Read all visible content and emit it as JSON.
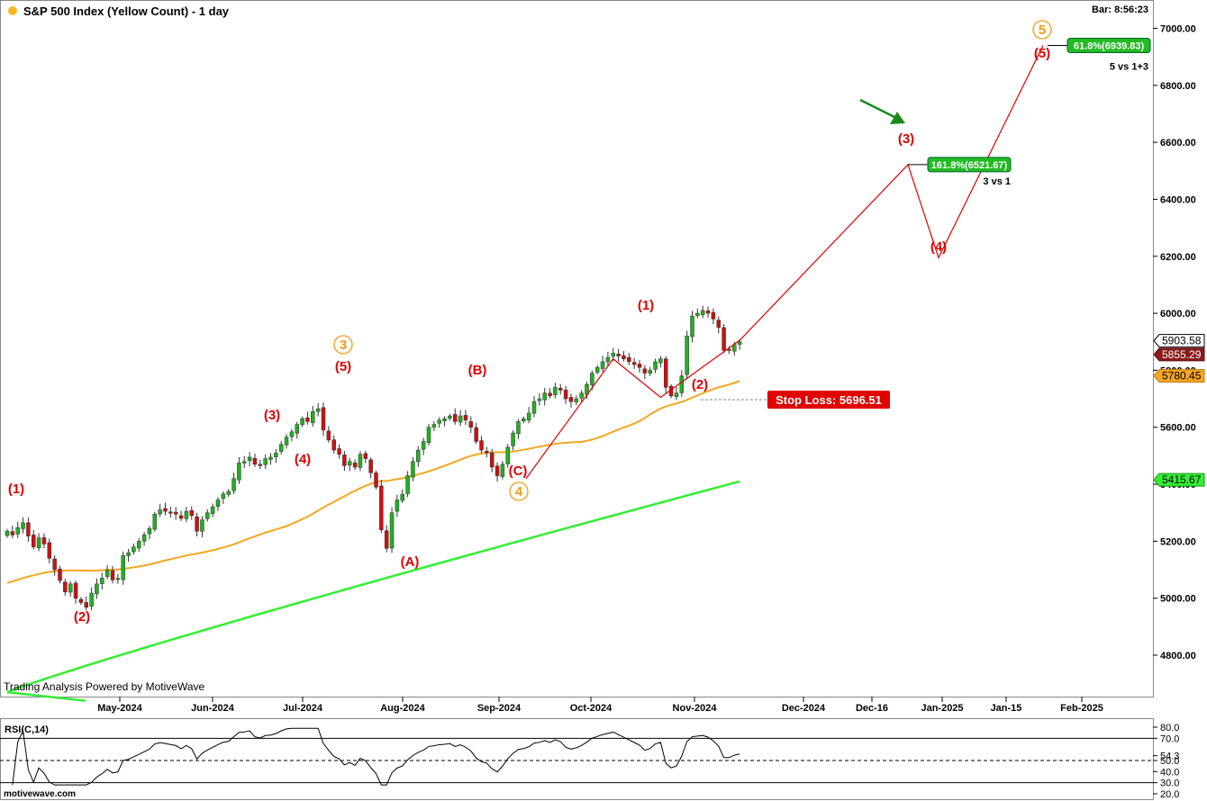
{
  "header": {
    "title": "S&P 500 Index (Yellow Count) - 1 day",
    "bar_time": "Bar: 8:56:23",
    "title_dot_color": "#f5b820"
  },
  "footer": {
    "powered_by": "Trading Analysis Powered by MotiveWave",
    "watermark": "motivewave.com"
  },
  "colors": {
    "up_candle": "#22b022",
    "down_candle": "#cc1111",
    "ma_fast": "#f5a623",
    "ma_slow": "#33ee33",
    "projection": "#e00000",
    "wave_red": "#e00000",
    "wave_orange": "#f39c12",
    "target_box": "#22bb22",
    "stop_box": "#e00000",
    "arrow": "#1a8a1a"
  },
  "chart_data": {
    "type": "candlestick",
    "ylim": [
      4650,
      7080
    ],
    "y_ticks": [
      {
        "value": 4800,
        "label": "4800.00"
      },
      {
        "value": 5000,
        "label": "5000.00"
      },
      {
        "value": 5200,
        "label": "5200.00"
      },
      {
        "value": 5400,
        "label": "5400.00"
      },
      {
        "value": 5600,
        "label": "5600.00"
      },
      {
        "value": 5800,
        "label": "5800.00"
      },
      {
        "value": 6000,
        "label": "6000.00"
      },
      {
        "value": 6200,
        "label": "6200.00"
      },
      {
        "value": 6400,
        "label": "6400.00"
      },
      {
        "value": 6600,
        "label": "6600.00"
      },
      {
        "value": 6800,
        "label": "6800.00"
      },
      {
        "value": 7000,
        "label": "7000.00"
      }
    ],
    "x_ticks": [
      "May-2024",
      "Jun-2024",
      "Jul-2024",
      "Aug-2024",
      "Sep-2024",
      "Oct-2024",
      "Nov-2024",
      "Dec-2024",
      "Dec-16",
      "Jan-2025",
      "Jan-15",
      "Feb-2025"
    ],
    "price_tags": [
      {
        "label": "5903.58",
        "value": 5903.58,
        "style": "outline"
      },
      {
        "label": "5855.29",
        "value": 5855.29,
        "style": "dark-red"
      },
      {
        "label": "5780.45",
        "value": 5780.45,
        "style": "orange"
      },
      {
        "label": "5415.67",
        "value": 5415.67,
        "style": "green"
      }
    ],
    "closes": [
      5235,
      5222,
      5248,
      5265,
      5218,
      5180,
      5212,
      5190,
      5140,
      5100,
      5062,
      5022,
      5050,
      5000,
      4985,
      4968,
      5018,
      5050,
      5071,
      5099,
      5064,
      5070,
      5150,
      5160,
      5180,
      5200,
      5222,
      5245,
      5295,
      5310,
      5305,
      5300,
      5295,
      5280,
      5305,
      5290,
      5235,
      5275,
      5300,
      5321,
      5345,
      5366,
      5375,
      5420,
      5475,
      5480,
      5495,
      5470,
      5465,
      5490,
      5495,
      5510,
      5540,
      5565,
      5584,
      5610,
      5630,
      5620,
      5655,
      5665,
      5590,
      5555,
      5520,
      5505,
      5465,
      5480,
      5460,
      5505,
      5490,
      5440,
      5390,
      5240,
      5175,
      5300,
      5345,
      5365,
      5430,
      5480,
      5520,
      5550,
      5600,
      5610,
      5625,
      5630,
      5640,
      5620,
      5640,
      5625,
      5600,
      5550,
      5520,
      5510,
      5460,
      5430,
      5470,
      5530,
      5580,
      5620,
      5630,
      5650,
      5690,
      5700,
      5720,
      5710,
      5740,
      5730,
      5700,
      5690,
      5700,
      5720,
      5750,
      5790,
      5810,
      5830,
      5845,
      5860,
      5850,
      5840,
      5830,
      5820,
      5810,
      5790,
      5800,
      5830,
      5840,
      5740,
      5710,
      5720,
      5780,
      5920,
      5990,
      6000,
      6010,
      6000,
      5980,
      5950,
      5870,
      5870,
      5890,
      5900
    ],
    "ma_fast_label": "orange moving average",
    "ma_slow_label": "green moving average",
    "projection_path": [
      {
        "bar": 115,
        "value": 5840
      },
      {
        "bar": 124,
        "value": 5705
      },
      {
        "bar": "end",
        "value": 5905
      },
      {
        "proj_x": 0,
        "value": 6521.67
      },
      {
        "proj_x": 1,
        "value": 6195
      },
      {
        "proj_x": 2,
        "value": 6939.83
      }
    ],
    "targets": [
      {
        "label": "161.8%(6521.67)",
        "value": 6521.67,
        "note": "3 vs 1"
      },
      {
        "label": "61.8%(6939.83)",
        "value": 6939.83,
        "note": "5 vs 1+3"
      }
    ],
    "stop_loss": {
      "label": "Stop Loss: 5696.51",
      "value": 5696.51
    },
    "wave_labels_red": [
      "(1)",
      "(2)",
      "(3)",
      "(4)",
      "(5)",
      "(A)",
      "(B)",
      "(C)",
      "(1)",
      "(2)",
      "(3)",
      "(4)",
      "(5)"
    ],
    "wave_labels_orange": [
      "3",
      "4",
      "5"
    ],
    "rsi": {
      "title": "RSI(C,14)",
      "ylim": [
        20,
        85
      ],
      "ticks": [
        "80.0",
        "70.0",
        "54.3",
        "50.0",
        "40.0",
        "30.0",
        "20.0"
      ],
      "tick_values": [
        80,
        70,
        54.3,
        50,
        40,
        30,
        20
      ]
    }
  }
}
